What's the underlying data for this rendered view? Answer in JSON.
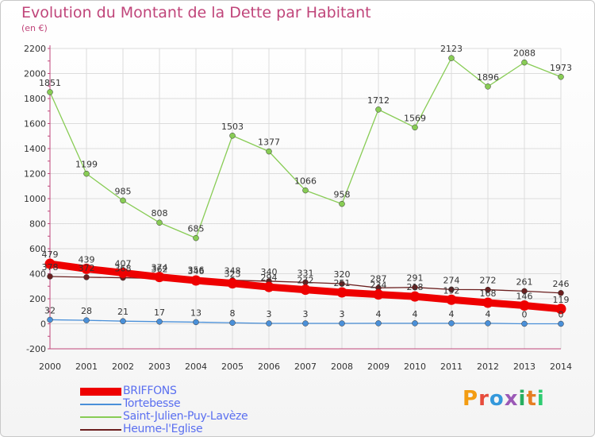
{
  "title": "Evolution du Montant de la Dette par Habitant",
  "unit": "(en €)",
  "logo": "Proxiti",
  "chart_data": {
    "type": "line",
    "x": [
      2000,
      2001,
      2002,
      2003,
      2004,
      2005,
      2006,
      2007,
      2008,
      2009,
      2010,
      2011,
      2012,
      2013,
      2014
    ],
    "ylim": [
      -200,
      2200
    ],
    "yticks": [
      -200,
      0,
      200,
      400,
      600,
      800,
      1000,
      1200,
      1400,
      1600,
      1800,
      2000,
      2200
    ],
    "grid": true,
    "legend_position": "bottom-left",
    "series": [
      {
        "name": "Heume-l'Eglise",
        "color": "#6b1f1f",
        "values": [
          378,
          372,
          368,
          362,
          356,
          348,
          340,
          331,
          320,
          287,
          291,
          274,
          272,
          261,
          246
        ],
        "labels": [
          "378",
          "372",
          "368",
          "362",
          "356",
          "348",
          "340",
          "331",
          "320",
          "287",
          "291",
          "274",
          "272",
          "261",
          "246"
        ]
      },
      {
        "name": "Saint-Julien-Puy-Lavèze",
        "color": "#88cc55",
        "values": [
          1851,
          1199,
          985,
          808,
          685,
          1503,
          1377,
          1066,
          958,
          1712,
          1569,
          2123,
          1896,
          2088,
          1973
        ],
        "labels": [
          "1851",
          "1199",
          "985",
          "808",
          "685",
          "1503",
          "1377",
          "1066",
          "958",
          "1712",
          "1569",
          "2123",
          "1896",
          "2088",
          "1973"
        ]
      },
      {
        "name": "Tortebesse",
        "color": "#4a90d9",
        "values": [
          32,
          28,
          21,
          17,
          13,
          8,
          3,
          3,
          3,
          4,
          4,
          4,
          4,
          0,
          0
        ],
        "labels": [
          "32",
          "28",
          "21",
          "17",
          "13",
          "8",
          "3",
          "3",
          "3",
          "4",
          "4",
          "4",
          "4",
          "0",
          "0"
        ]
      },
      {
        "name": "BRIFFONS",
        "color": "#ee0000",
        "values": [
          479,
          439,
          407,
          374,
          346,
          323,
          294,
          272,
          251,
          234,
          218,
          192,
          168,
          146,
          119
        ],
        "labels": [
          "479",
          "439",
          "407",
          "374",
          "346",
          "323",
          "294",
          "272",
          "251",
          "234",
          "218",
          "192",
          "168",
          "146",
          "119"
        ]
      }
    ]
  }
}
